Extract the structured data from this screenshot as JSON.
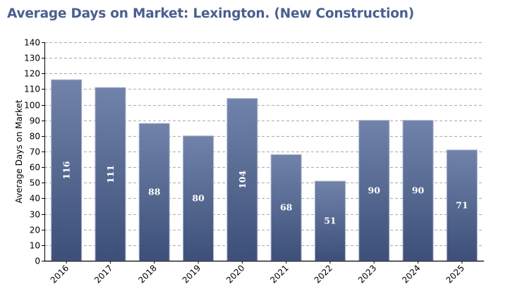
{
  "chart_data": {
    "type": "bar",
    "title": "Average Days on Market: Lexington. (New Construction)",
    "xlabel": "",
    "ylabel": "Average Days on Market",
    "categories": [
      "2016",
      "2017",
      "2018",
      "2019",
      "2020",
      "2021",
      "2022",
      "2023",
      "2024",
      "2025"
    ],
    "values": [
      116,
      111,
      88,
      80,
      104,
      68,
      51,
      90,
      90,
      71
    ],
    "data_labels": [
      "116",
      "111",
      "88",
      "80",
      "104",
      "68",
      "51",
      "90",
      "90",
      "71"
    ],
    "ylim": [
      0,
      140
    ],
    "yticks": [
      "0",
      "10",
      "20",
      "30",
      "40",
      "50",
      "60",
      "70",
      "80",
      "90",
      "100",
      "110",
      "120",
      "130",
      "140"
    ],
    "grid": true,
    "legend": "none",
    "colors": {
      "bar_top": "#7183aa",
      "bar_bottom": "#3c4f78",
      "bar_edge": "#a7b4d0",
      "title": "#4a5f8f",
      "grid": "#aaaaaa"
    }
  }
}
